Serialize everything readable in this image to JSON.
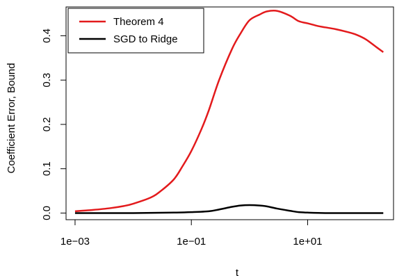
{
  "chart_data": {
    "type": "line",
    "title": "",
    "xlabel": "t",
    "ylabel": "Coefficient Error, Bound",
    "x_scale": "log10",
    "xlim": [
      0.0007,
      300
    ],
    "ylim": [
      -0.015,
      0.465
    ],
    "x_ticks": [
      {
        "value": 0.001,
        "label": "1e−03"
      },
      {
        "value": 0.1,
        "label": "1e−01"
      },
      {
        "value": 10,
        "label": "1e+01"
      }
    ],
    "y_ticks": [
      {
        "value": 0.0,
        "label": "0.0"
      },
      {
        "value": 0.1,
        "label": "0.1"
      },
      {
        "value": 0.2,
        "label": "0.2"
      },
      {
        "value": 0.3,
        "label": "0.3"
      },
      {
        "value": 0.4,
        "label": "0.4"
      }
    ],
    "grid": false,
    "legend_position": "top-left",
    "series": [
      {
        "name": "Theorem 4",
        "color": "#e31a1c",
        "x": [
          0.001,
          0.002,
          0.004,
          0.007,
          0.01,
          0.02,
          0.03,
          0.05,
          0.07,
          0.1,
          0.15,
          0.2,
          0.3,
          0.5,
          0.7,
          1,
          1.5,
          2,
          3,
          5,
          7,
          10,
          15,
          20,
          30,
          50,
          70,
          100,
          150,
          200
        ],
        "y": [
          0.004,
          0.007,
          0.011,
          0.016,
          0.021,
          0.035,
          0.05,
          0.076,
          0.105,
          0.14,
          0.19,
          0.232,
          0.3,
          0.37,
          0.405,
          0.435,
          0.448,
          0.455,
          0.456,
          0.445,
          0.433,
          0.428,
          0.422,
          0.419,
          0.415,
          0.408,
          0.402,
          0.392,
          0.375,
          0.363
        ]
      },
      {
        "name": "SGD to Ridge",
        "color": "#000000",
        "x": [
          0.001,
          0.01,
          0.05,
          0.1,
          0.2,
          0.3,
          0.5,
          0.7,
          1,
          1.5,
          2,
          3,
          5,
          7,
          10,
          20,
          50,
          100,
          200
        ],
        "y": [
          0.0,
          0.0,
          0.001,
          0.002,
          0.004,
          0.008,
          0.014,
          0.017,
          0.018,
          0.017,
          0.015,
          0.01,
          0.005,
          0.002,
          0.001,
          0.0,
          0.0,
          0.0,
          0.0
        ]
      }
    ]
  }
}
